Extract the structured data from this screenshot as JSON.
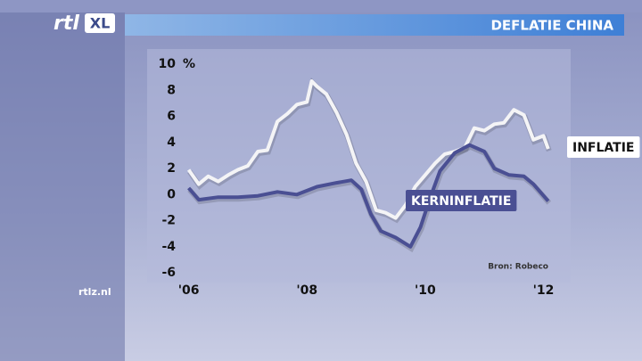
{
  "brand": {
    "logo": "rtl",
    "logo_badge": "XL",
    "site": "rtlz.nl"
  },
  "chart_data": {
    "type": "line",
    "title": "DEFLATIE CHINA",
    "y_unit": "%",
    "source": "Bron: Robeco",
    "xlim": [
      2005.9,
      2012.4
    ],
    "xticks": [
      {
        "value": 2006,
        "label": "'06"
      },
      {
        "value": 2008,
        "label": "'08"
      },
      {
        "value": 2010,
        "label": "'10"
      },
      {
        "value": 2012,
        "label": "'12"
      }
    ],
    "ylim": [
      -6,
      10
    ],
    "yticks": [
      10,
      8,
      6,
      4,
      2,
      0,
      -2,
      -4,
      -6
    ],
    "series": [
      {
        "name": "INFLATIE",
        "color": "#f4f4f6",
        "x": [
          2006.0,
          2006.17,
          2006.33,
          2006.5,
          2006.67,
          2006.83,
          2007.0,
          2007.17,
          2007.33,
          2007.5,
          2007.67,
          2007.83,
          2008.0,
          2008.08,
          2008.17,
          2008.33,
          2008.5,
          2008.67,
          2008.83,
          2009.0,
          2009.17,
          2009.33,
          2009.5,
          2009.67,
          2009.83,
          2010.0,
          2010.17,
          2010.33,
          2010.5,
          2010.67,
          2010.83,
          2011.0,
          2011.17,
          2011.33,
          2011.5,
          2011.67,
          2011.83,
          2012.0,
          2012.08
        ],
        "values": [
          1.9,
          0.8,
          1.4,
          1.0,
          1.5,
          1.9,
          2.2,
          3.3,
          3.4,
          5.6,
          6.2,
          6.9,
          7.1,
          8.7,
          8.3,
          7.7,
          6.3,
          4.6,
          2.4,
          1.0,
          -1.2,
          -1.4,
          -1.8,
          -0.8,
          0.6,
          1.5,
          2.4,
          3.1,
          3.3,
          3.6,
          5.1,
          4.9,
          5.4,
          5.5,
          6.5,
          6.1,
          4.2,
          4.5,
          3.5
        ]
      },
      {
        "name": "KERNINFLATIE",
        "color": "#4a4f93",
        "x": [
          2006.0,
          2006.17,
          2006.5,
          2006.83,
          2007.17,
          2007.5,
          2007.83,
          2008.17,
          2008.5,
          2008.75,
          2008.92,
          2009.08,
          2009.25,
          2009.5,
          2009.75,
          2009.92,
          2010.08,
          2010.25,
          2010.5,
          2010.75,
          2011.0,
          2011.17,
          2011.42,
          2011.67,
          2011.83,
          2012.08
        ],
        "values": [
          0.5,
          -0.4,
          -0.2,
          -0.2,
          -0.1,
          0.2,
          0.0,
          0.6,
          0.9,
          1.1,
          0.4,
          -1.5,
          -2.8,
          -3.3,
          -4.0,
          -2.5,
          -0.3,
          1.8,
          3.2,
          3.8,
          3.3,
          2.0,
          1.5,
          1.4,
          0.8,
          -0.5
        ]
      }
    ]
  }
}
